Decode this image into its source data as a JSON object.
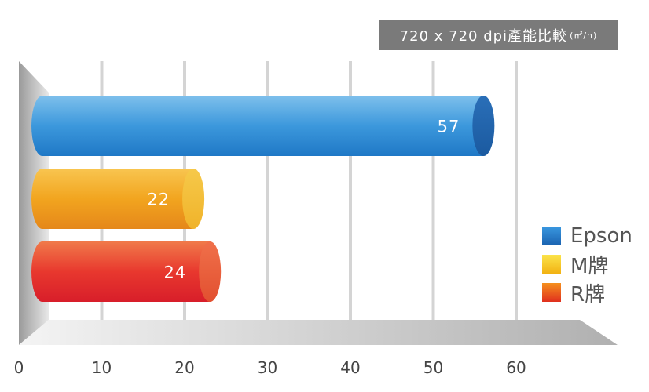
{
  "chart_data": {
    "type": "bar",
    "orientation": "horizontal",
    "title": "720 x 720 dpi產能比較",
    "title_unit": "(㎡/h)",
    "categories": [
      "Epson",
      "M牌",
      "R牌"
    ],
    "values": [
      57,
      22,
      24
    ],
    "colors": [
      "#2a8ad4",
      "#f2a51f",
      "#e8382e"
    ],
    "xlim": [
      0,
      60
    ],
    "xticks": [
      0,
      10,
      20,
      30,
      40,
      50,
      60
    ],
    "grid": true,
    "legend": {
      "position": "right",
      "entries": [
        {
          "label": "Epson",
          "color": "#1e78c8"
        },
        {
          "label": "M牌",
          "color": "#f5c518"
        },
        {
          "label": "R牌",
          "color": "#e85a1e"
        }
      ]
    }
  }
}
